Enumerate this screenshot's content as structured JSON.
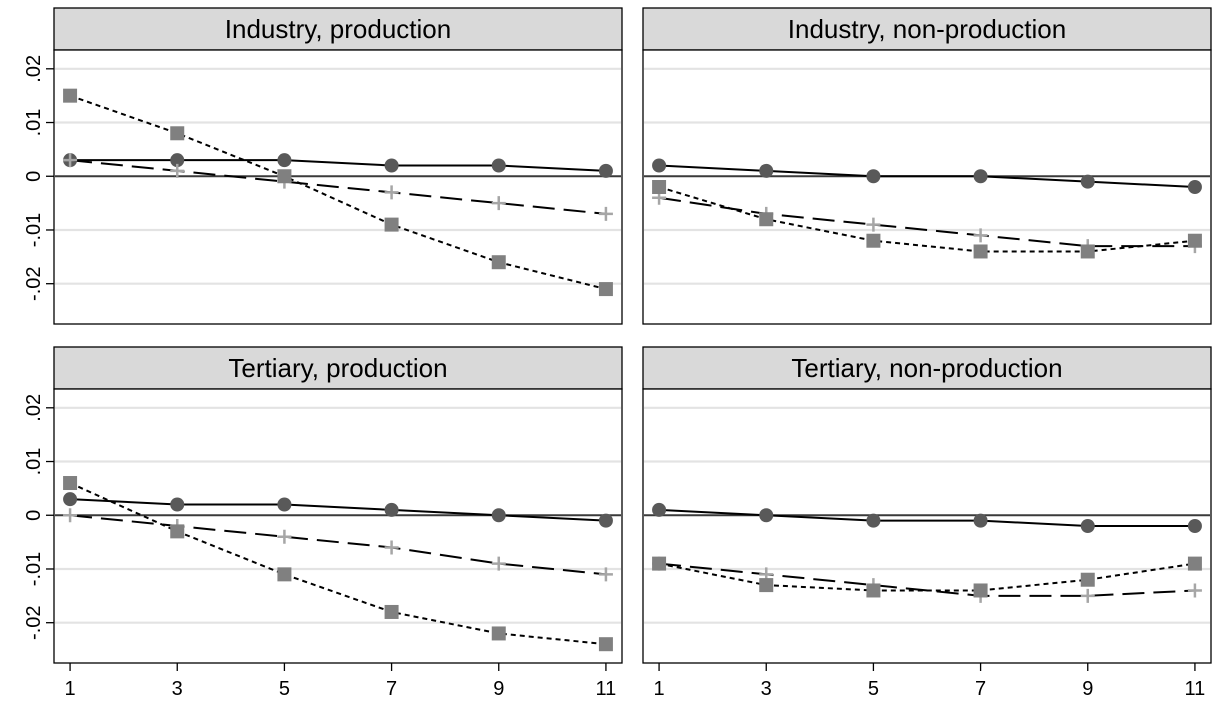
{
  "chart_data": {
    "type": "line",
    "layout": "2x2 facets",
    "panels": [
      {
        "title": "Industry, production",
        "series": [
          {
            "marker": "circle",
            "line_style": "solid",
            "color": "#595959",
            "values": [
              0.003,
              0.003,
              0.003,
              0.002,
              0.002,
              0.001
            ]
          },
          {
            "marker": "plus",
            "line_style": "long-dash",
            "color": "#a6a6a6",
            "values": [
              0.003,
              0.001,
              -0.001,
              -0.003,
              -0.005,
              -0.007
            ]
          },
          {
            "marker": "square",
            "line_style": "short-dash",
            "color": "#808080",
            "values": [
              0.015,
              0.008,
              0.0,
              -0.009,
              -0.016,
              -0.021
            ]
          }
        ]
      },
      {
        "title": "Industry, non-production",
        "series": [
          {
            "marker": "circle",
            "line_style": "solid",
            "color": "#595959",
            "values": [
              0.002,
              0.001,
              0.0,
              0.0,
              -0.001,
              -0.002
            ]
          },
          {
            "marker": "plus",
            "line_style": "long-dash",
            "color": "#a6a6a6",
            "values": [
              -0.004,
              -0.007,
              -0.009,
              -0.011,
              -0.013,
              -0.013
            ]
          },
          {
            "marker": "square",
            "line_style": "short-dash",
            "color": "#808080",
            "values": [
              -0.002,
              -0.008,
              -0.012,
              -0.014,
              -0.014,
              -0.012
            ]
          }
        ]
      },
      {
        "title": "Tertiary, production",
        "series": [
          {
            "marker": "circle",
            "line_style": "solid",
            "color": "#595959",
            "values": [
              0.003,
              0.002,
              0.002,
              0.001,
              0.0,
              -0.001
            ]
          },
          {
            "marker": "plus",
            "line_style": "long-dash",
            "color": "#a6a6a6",
            "values": [
              0.0,
              -0.002,
              -0.004,
              -0.006,
              -0.009,
              -0.011
            ]
          },
          {
            "marker": "square",
            "line_style": "short-dash",
            "color": "#808080",
            "values": [
              0.006,
              -0.003,
              -0.011,
              -0.018,
              -0.022,
              -0.024
            ]
          }
        ]
      },
      {
        "title": "Tertiary, non-production",
        "series": [
          {
            "marker": "circle",
            "line_style": "solid",
            "color": "#595959",
            "values": [
              0.001,
              0.0,
              -0.001,
              -0.001,
              -0.002,
              -0.002
            ]
          },
          {
            "marker": "plus",
            "line_style": "long-dash",
            "color": "#a6a6a6",
            "values": [
              -0.009,
              -0.011,
              -0.013,
              -0.015,
              -0.015,
              -0.014
            ]
          },
          {
            "marker": "square",
            "line_style": "short-dash",
            "color": "#808080",
            "values": [
              -0.009,
              -0.013,
              -0.014,
              -0.014,
              -0.012,
              -0.009
            ]
          }
        ]
      }
    ],
    "x": [
      1,
      3,
      5,
      7,
      9,
      11
    ],
    "x_tick_labels": [
      "1",
      "3",
      "5",
      "7",
      "9",
      "11"
    ],
    "y_ticks": [
      -0.02,
      -0.01,
      0,
      0.01,
      0.02
    ],
    "y_tick_labels": [
      "-.02",
      "-.01",
      "0",
      ".01",
      ".02"
    ],
    "xlim": [
      0.7,
      11.3
    ],
    "ylim": [
      -0.0275,
      0.0235
    ],
    "grid": true,
    "zero_line": true,
    "xlabel": "",
    "ylabel": "",
    "legend": "none",
    "colors": {
      "strip_background": "#d9d9d9",
      "grid": "#e3e3e3",
      "zero_line": "#3a3a3a",
      "frame": "#000000"
    }
  }
}
